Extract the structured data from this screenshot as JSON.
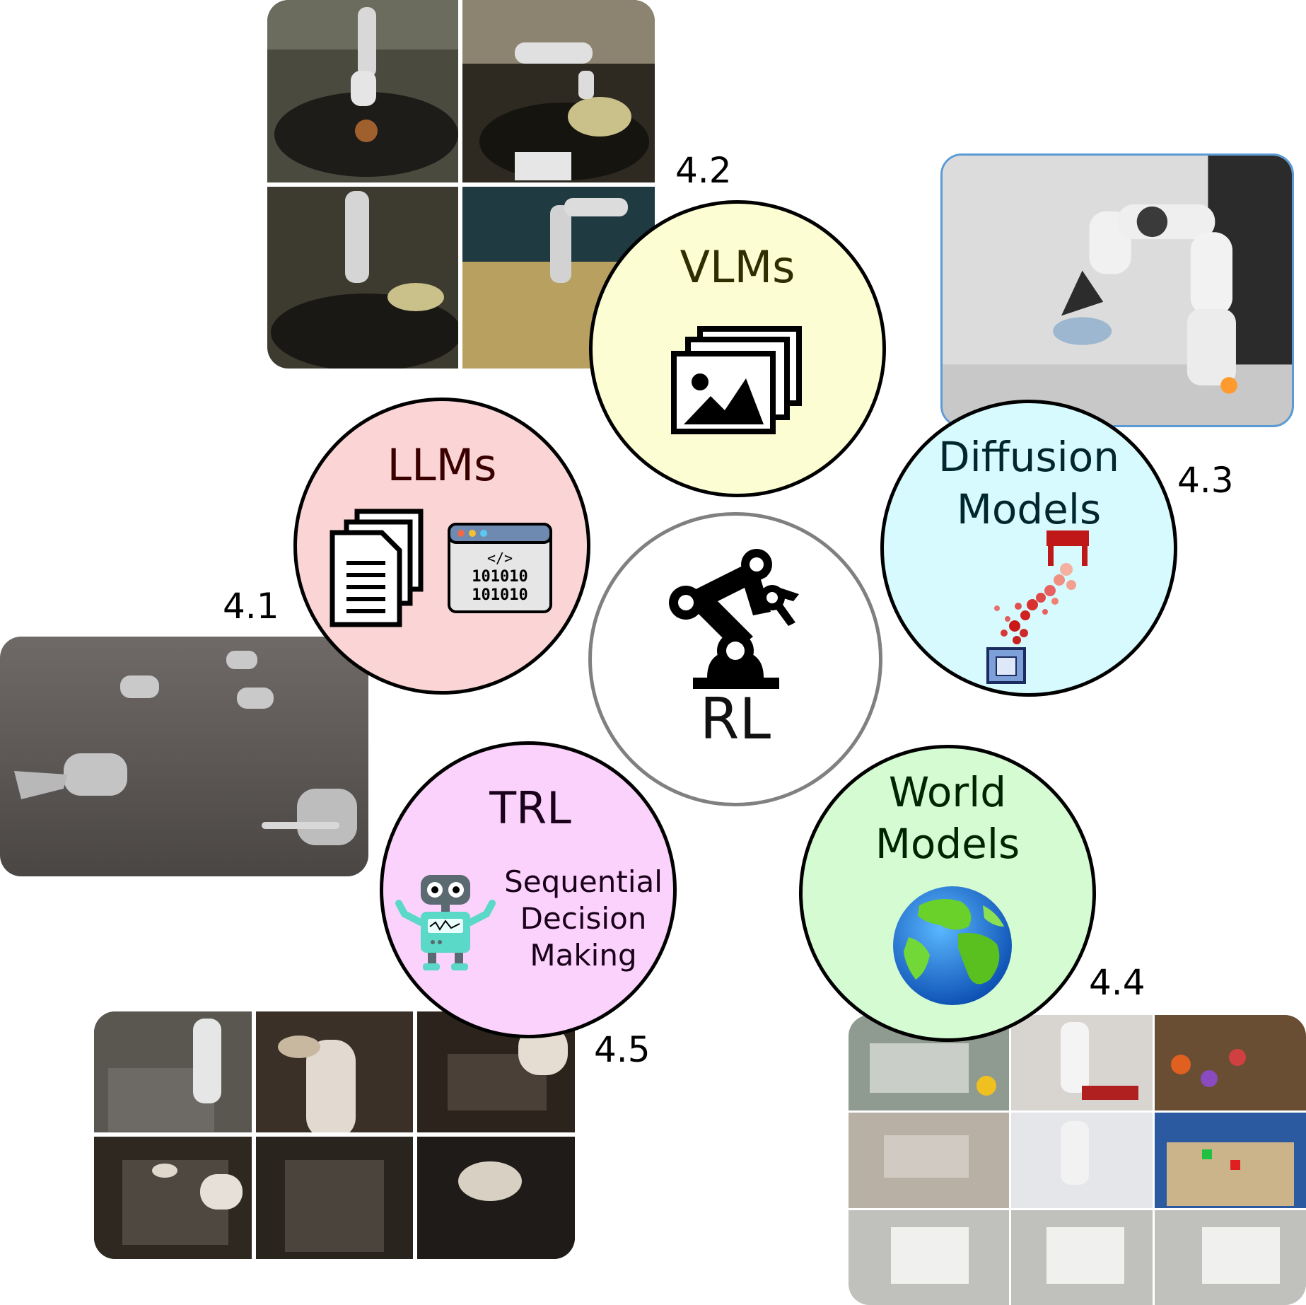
{
  "center": {
    "label": "RL"
  },
  "topics": [
    {
      "id": "llms",
      "label": "LLMs",
      "section": "4.1"
    },
    {
      "id": "vlms",
      "label": "VLMs",
      "section": "4.2"
    },
    {
      "id": "diffusion",
      "label_line1": "Diffusion",
      "label_line2": "Models",
      "section": "4.3"
    },
    {
      "id": "world",
      "label_line1": "World",
      "label_line2": "Models",
      "section": "4.4"
    },
    {
      "id": "trl",
      "label": "TRL",
      "section": "4.5",
      "caption_line1": "Sequential",
      "caption_line2": "Decision",
      "caption_line3": "Making"
    }
  ],
  "code_icon_text": {
    "tag": "</>",
    "line1": "101010",
    "line2": "101010"
  },
  "icons": [
    "robot-arm-icon",
    "documents-icon",
    "code-window-icon",
    "images-icon",
    "gripper-particles-icon",
    "globe-icon",
    "robot-icon"
  ],
  "colors": {
    "llms_fill": "#fbd5d5",
    "vlms_fill": "#fdfdd3",
    "diffusion_fill": "#d6fafd",
    "world_fill": "#d5fbd2",
    "trl_fill": "#fad2fb",
    "center_border": "#808080",
    "llms_text": "#3a0000",
    "vlms_text": "#2e2e00",
    "diffusion_text": "#00262e",
    "world_text": "#002400",
    "trl_text": "#1a001a"
  }
}
